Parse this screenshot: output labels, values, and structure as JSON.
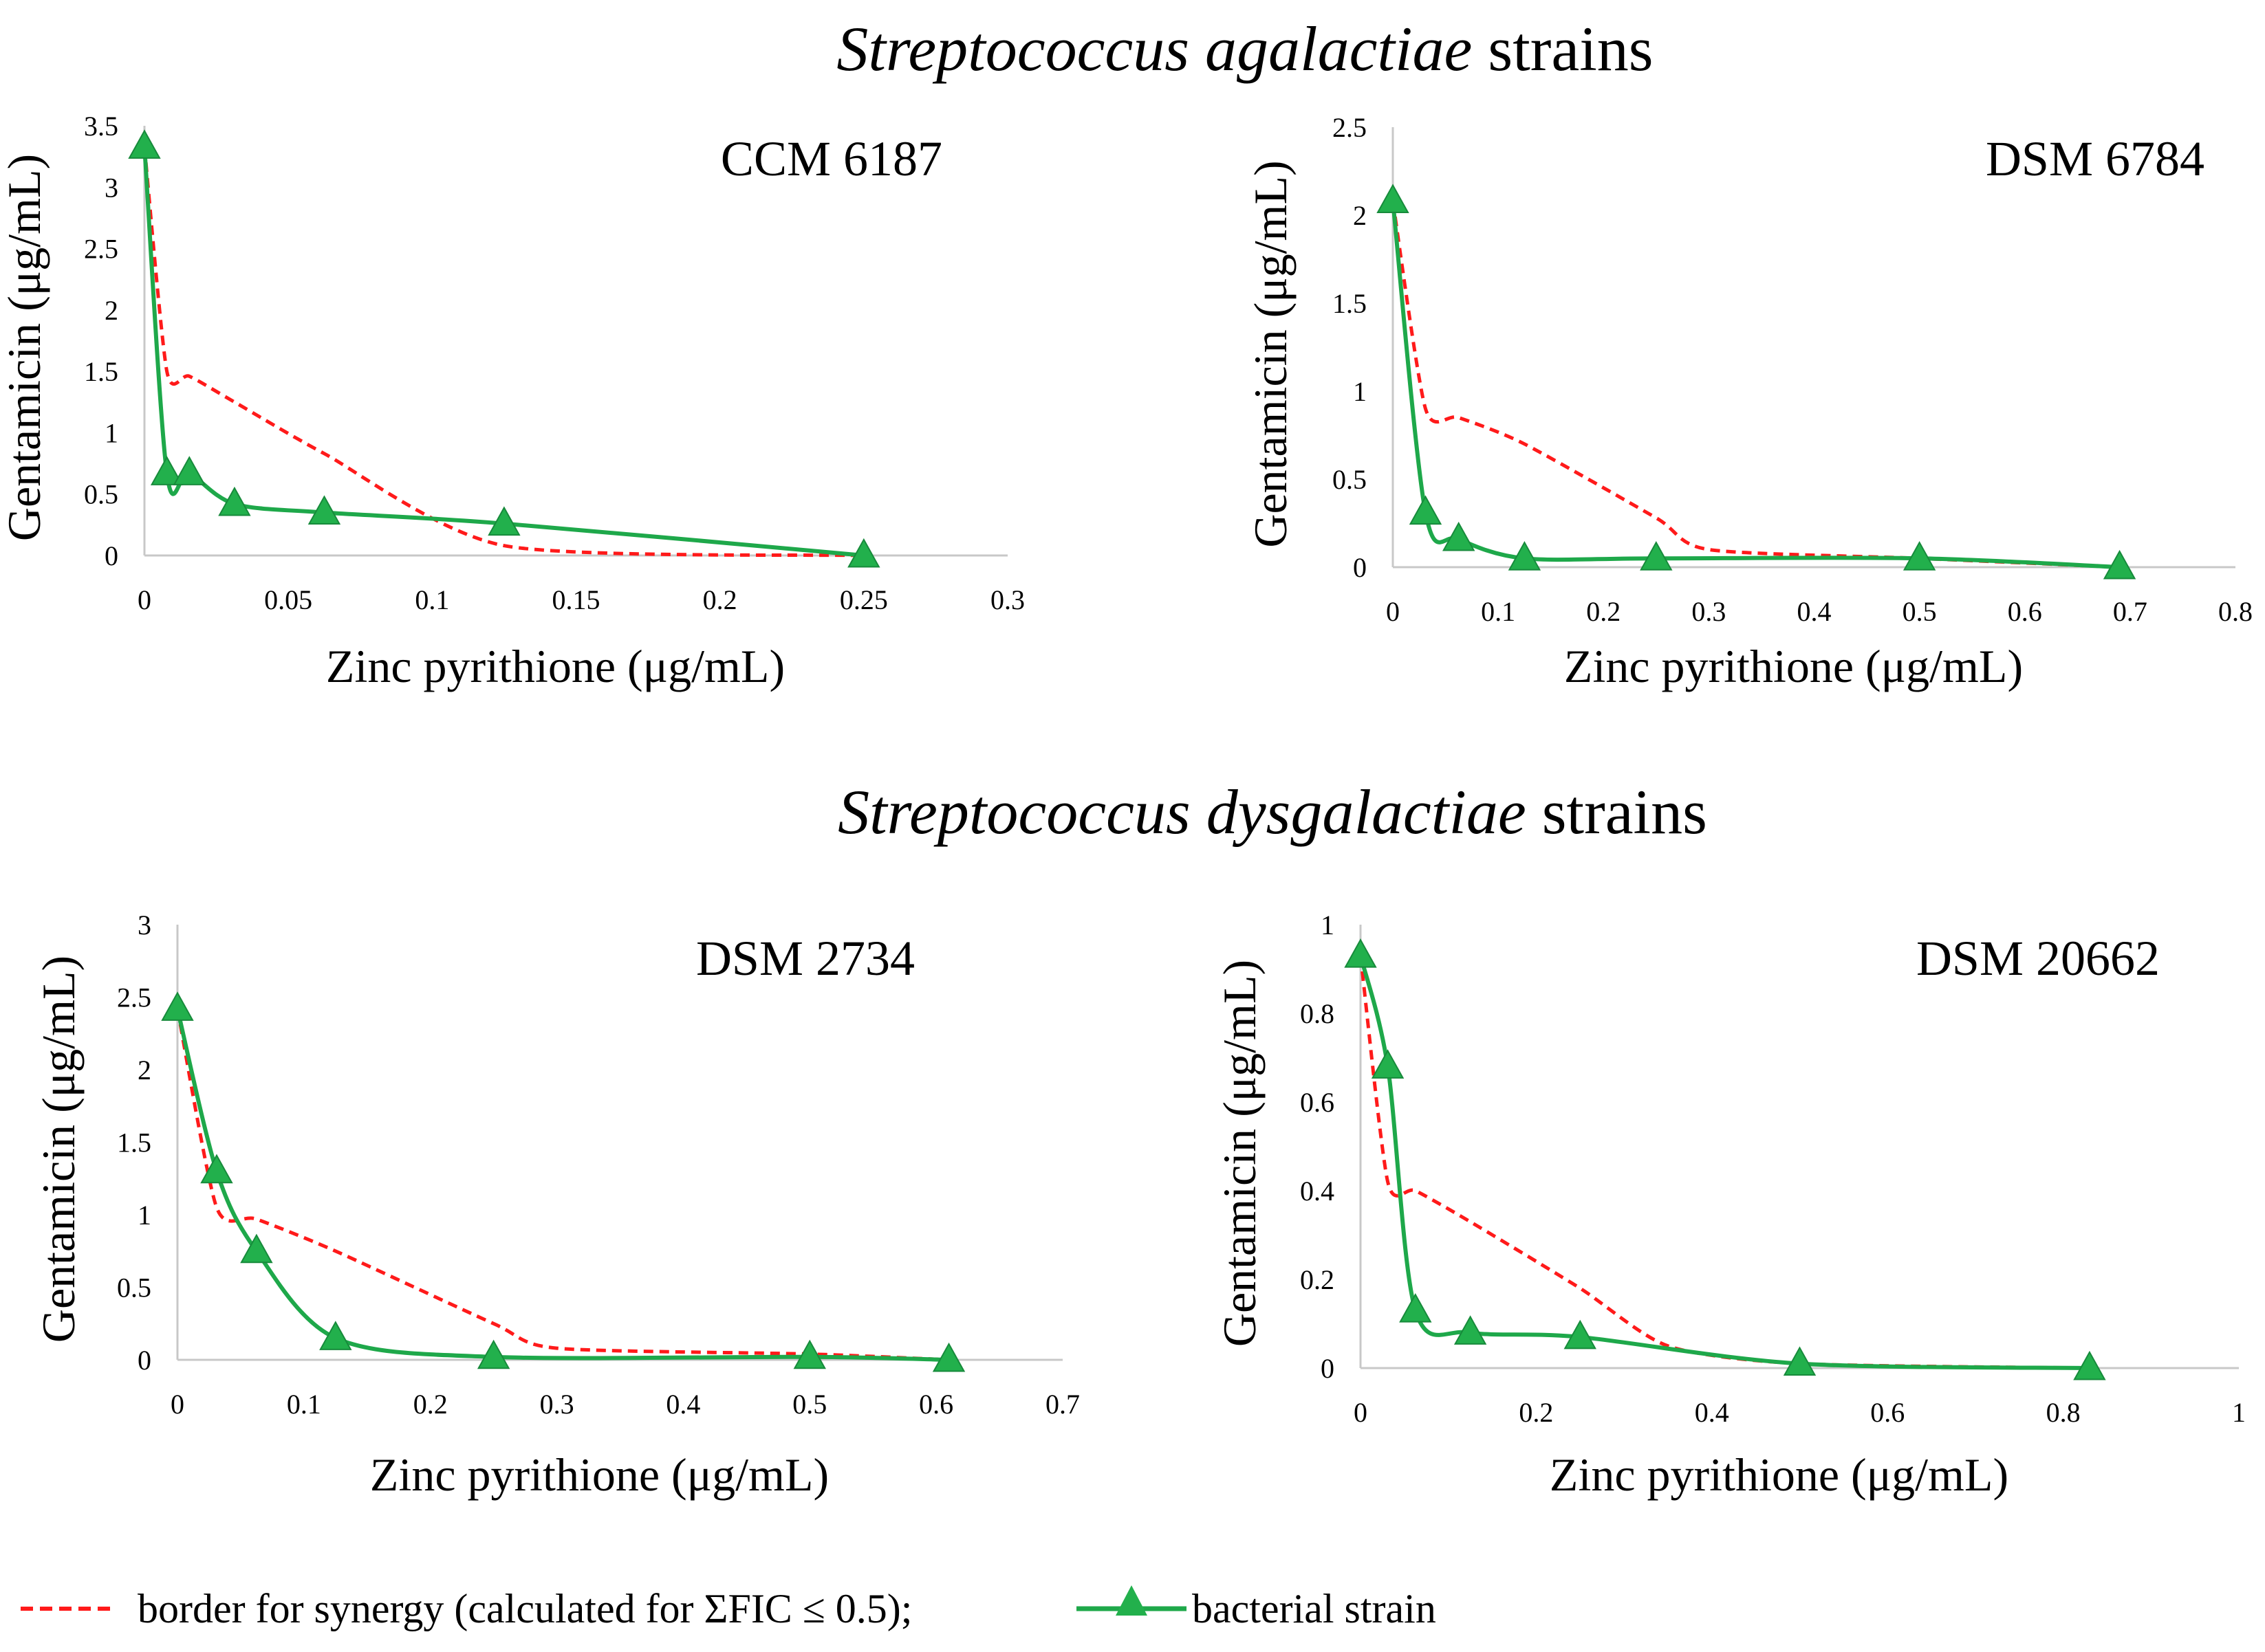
{
  "sections": [
    {
      "italic": "Streptococcus agalactiae",
      "rest": " strains"
    },
    {
      "italic": "Streptococcus dysgalactiae",
      "rest": " strains"
    }
  ],
  "legend": {
    "synergy_label": "border for synergy (calculated for ΣFIC ≤ 0.5);",
    "strain_label": "bacterial strain"
  },
  "colors": {
    "strain": "#1ea84a",
    "strain_marker": "#22b04c",
    "synergy": "#ff1a1a",
    "axis": "#c8c8c8"
  },
  "chart_data": [
    {
      "type": "line",
      "label": "CCM 6187",
      "xlabel": "Zinc pyrithione (μg/mL)",
      "ylabel": "Gentamicin (μg/mL)",
      "xlim": [
        0,
        0.3
      ],
      "ylim": [
        0,
        3.5
      ],
      "xticks": [
        0,
        0.05,
        0.1,
        0.15,
        0.2,
        0.25,
        0.3
      ],
      "xtick_labels": [
        "0",
        "0.05",
        "0.1",
        "0.15",
        "0.2",
        "0.25",
        "0.3"
      ],
      "yticks": [
        0,
        0.5,
        1,
        1.5,
        2,
        2.5,
        3,
        3.5
      ],
      "ytick_labels": [
        "0",
        "0.5",
        "1",
        "1.5",
        "2",
        "2.5",
        "3",
        "3.5"
      ],
      "series": [
        {
          "name": "bacterial strain",
          "style": "strain",
          "x": [
            0,
            0.0078,
            0.0156,
            0.0313,
            0.0625,
            0.125,
            0.25
          ],
          "y": [
            3.33,
            0.67,
            0.67,
            0.42,
            0.35,
            0.26,
            0
          ]
        },
        {
          "name": "border for synergy",
          "style": "synergy",
          "x": [
            0,
            0.0078,
            0.0156,
            0.0313,
            0.0625,
            0.125,
            0.25
          ],
          "y": [
            3.33,
            1.5,
            1.46,
            1.25,
            0.83,
            0.08,
            0
          ]
        }
      ]
    },
    {
      "type": "line",
      "label": "DSM 6784",
      "xlabel": "Zinc pyrithione (μg/mL)",
      "ylabel": "Gentamicin (μg/mL)",
      "xlim": [
        0,
        0.8
      ],
      "ylim": [
        0,
        2.5
      ],
      "xticks": [
        0,
        0.1,
        0.2,
        0.3,
        0.4,
        0.5,
        0.6,
        0.7,
        0.8
      ],
      "xtick_labels": [
        "0",
        "0.1",
        "0.2",
        "0.3",
        "0.4",
        "0.5",
        "0.6",
        "0.7",
        "0.8"
      ],
      "yticks": [
        0,
        0.5,
        1,
        1.5,
        2,
        2.5
      ],
      "ytick_labels": [
        "0",
        "0.5",
        "1",
        "1.5",
        "2",
        "2.5"
      ],
      "series": [
        {
          "name": "bacterial strain",
          "style": "strain",
          "x": [
            0,
            0.031,
            0.0625,
            0.125,
            0.25,
            0.5,
            0.69
          ],
          "y": [
            2.08,
            0.31,
            0.16,
            0.05,
            0.05,
            0.05,
            0
          ]
        },
        {
          "name": "border for synergy",
          "style": "synergy",
          "x": [
            0,
            0.031,
            0.0625,
            0.125,
            0.25,
            0.3,
            0.5,
            0.69
          ],
          "y": [
            2.08,
            0.9,
            0.85,
            0.7,
            0.28,
            0.1,
            0.05,
            0
          ]
        }
      ]
    },
    {
      "type": "line",
      "label": "DSM 2734",
      "xlabel": "Zinc pyrithione (μg/mL)",
      "ylabel": "Gentamicin (μg/mL)",
      "xlim": [
        0,
        0.7
      ],
      "ylim": [
        0,
        3
      ],
      "xticks": [
        0,
        0.1,
        0.2,
        0.3,
        0.4,
        0.5,
        0.6,
        0.7
      ],
      "xtick_labels": [
        "0",
        "0.1",
        "0.2",
        "0.3",
        "0.4",
        "0.5",
        "0.6",
        "0.7"
      ],
      "yticks": [
        0,
        0.5,
        1,
        1.5,
        2,
        2.5,
        3
      ],
      "ytick_labels": [
        "0",
        "0.5",
        "1",
        "1.5",
        "2",
        "2.5",
        "3"
      ],
      "series": [
        {
          "name": "bacterial strain",
          "style": "strain",
          "x": [
            0,
            0.031,
            0.0625,
            0.125,
            0.25,
            0.5,
            0.61
          ],
          "y": [
            2.42,
            1.3,
            0.75,
            0.15,
            0.02,
            0.02,
            0
          ]
        },
        {
          "name": "border for synergy",
          "style": "synergy",
          "x": [
            0,
            0.031,
            0.0625,
            0.125,
            0.25,
            0.3,
            0.5,
            0.61
          ],
          "y": [
            2.42,
            1.05,
            0.97,
            0.75,
            0.25,
            0.08,
            0.04,
            0
          ]
        }
      ]
    },
    {
      "type": "line",
      "label": "DSM 20662",
      "xlabel": "Zinc pyrithione (μg/mL)",
      "ylabel": "Gentamicin (μg/mL)",
      "xlim": [
        0,
        1
      ],
      "ylim": [
        0,
        1
      ],
      "xticks": [
        0,
        0.2,
        0.4,
        0.6,
        0.8,
        1
      ],
      "xtick_labels": [
        "0",
        "0.2",
        "0.4",
        "0.6",
        "0.8",
        "1"
      ],
      "yticks": [
        0,
        0.2,
        0.4,
        0.6,
        0.8,
        1
      ],
      "ytick_labels": [
        "0",
        "0.2",
        "0.4",
        "0.6",
        "0.8",
        "1"
      ],
      "series": [
        {
          "name": "bacterial strain",
          "style": "strain",
          "x": [
            0,
            0.031,
            0.0625,
            0.125,
            0.25,
            0.5,
            0.83
          ],
          "y": [
            0.93,
            0.68,
            0.13,
            0.08,
            0.07,
            0.01,
            0
          ]
        },
        {
          "name": "border for synergy",
          "style": "synergy",
          "x": [
            0,
            0.031,
            0.0625,
            0.125,
            0.25,
            0.35,
            0.5,
            0.83
          ],
          "y": [
            0.93,
            0.42,
            0.4,
            0.33,
            0.18,
            0.05,
            0.01,
            0
          ]
        }
      ]
    }
  ]
}
